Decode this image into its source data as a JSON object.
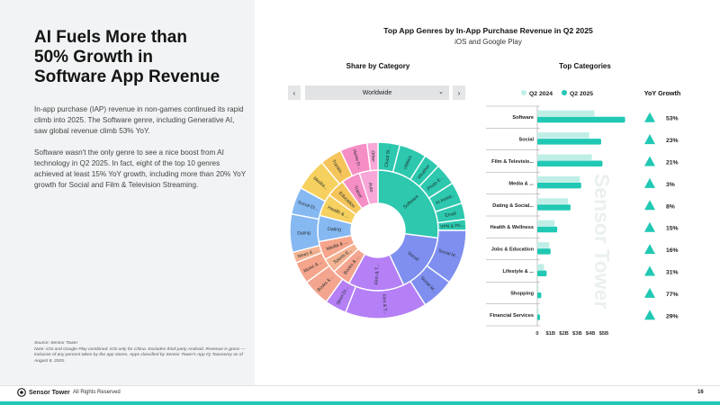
{
  "headline": [
    "AI Fuels More than",
    "50% Growth in",
    "Software App Revenue"
  ],
  "body_paragraphs": [
    "In-app purchase (IAP) revenue in non-games continued its rapid climb into 2025. The Software genre, including Generative AI, saw global revenue climb 53% YoY.",
    "Software wasn't the only genre to see a nice boost from AI technology in Q2 2025. In fact, eight of the top 10 genres achieved at least 15% YoY growth, including more than 20% YoY growth for Social and Film & Television Streaming."
  ],
  "source": {
    "label": "Source: Sensor Tower",
    "note": "Note: iOS and Google Play combined. iOS only for China. Excludes third-party Android. Revenue is gross — inclusive of any percent taken by the app stores. Apps classified by Sensor Tower's App IQ Taxonomy as of August 8, 2025."
  },
  "footer": {
    "brand": "Sensor Tower",
    "rights": "All Rights Reserved",
    "page": "16"
  },
  "chart": {
    "title": "Top App Genres by In-App Purchase Revenue in Q2 2025",
    "subtitle": "iOS and Google Play",
    "share_title": "Share by Category",
    "top_title": "Top Categories",
    "yoy_title": "YoY Growth",
    "dropdown_value": "Worldwide",
    "nav_prev": "‹",
    "nav_next": "›",
    "dropdown_chevron": "⌄",
    "legend": [
      "Q2 2024",
      "Q2 2025"
    ],
    "watermark": "Sensor Tower"
  },
  "colors": {
    "teal": "#21c8b3",
    "teal_light": "#bfeee7",
    "growth": "#21c8b3",
    "sunburst": {
      "software": "#2dc8ae",
      "social": "#7f8ff0",
      "film": "#b57ff5",
      "books": "#f4a58f",
      "music": "#f5a58c",
      "sports": "#f4b493",
      "dating": "#86b8f2",
      "health": "#f6d15f",
      "education": "#f5c55b",
      "travel": "#f58ec5",
      "misc": "#f7a7d8"
    }
  },
  "chart_data": [
    {
      "type": "bar",
      "orientation": "horizontal",
      "categories": [
        "Software",
        "Social",
        "Film & Television Streaming",
        "Media & Entertainment",
        "Dating & Social Discovery",
        "Health & Wellness",
        "Jobs & Education",
        "Lifestyle & Entertainment",
        "Shopping",
        "Financial Services"
      ],
      "category_labels": [
        "Software",
        "Social",
        "Film & Televisio...",
        "Media & ...",
        "Dating & Social...",
        "Health & Wellness",
        "Jobs & Education",
        "Lifestyle & ...",
        "Shopping",
        "Financial Services"
      ],
      "series": [
        {
          "name": "Q2 2024",
          "values": [
            4.3,
            3.9,
            4.1,
            3.2,
            2.3,
            1.3,
            0.9,
            0.5,
            0.1,
            0.1
          ]
        },
        {
          "name": "Q2 2025",
          "values": [
            6.6,
            4.8,
            4.9,
            3.3,
            2.5,
            1.5,
            1.0,
            0.7,
            0.3,
            0.2
          ]
        }
      ],
      "yoy_growth": [
        "53%",
        "23%",
        "21%",
        "3%",
        "8%",
        "15%",
        "16%",
        "31%",
        "77%",
        "29%"
      ],
      "xticks": [
        "0",
        "$1B",
        "$2B",
        "$3B",
        "$4B",
        "$5B"
      ],
      "xlim": [
        0,
        6.9
      ]
    },
    {
      "type": "sunburst",
      "inner": [
        {
          "label": "Software",
          "value": 27
        },
        {
          "label": "Social",
          "value": 16
        },
        {
          "label": "Film & T...",
          "value": 15
        },
        {
          "label": "Books & ...",
          "value": 5
        },
        {
          "label": "Sports E...",
          "value": 4
        },
        {
          "label": "Media & ...",
          "value": 5
        },
        {
          "label": "Dating",
          "value": 7
        },
        {
          "label": "Health & ...",
          "value": 6
        },
        {
          "label": "Education",
          "value": 5
        },
        {
          "label": "Travel",
          "value": 5
        },
        {
          "label": "Auto",
          "value": 5
        }
      ],
      "outer": [
        {
          "label": "Cloud St...",
          "value": 4
        },
        {
          "label": "Utilities",
          "value": 5
        },
        {
          "label": "Weather",
          "value": 3
        },
        {
          "label": "Photo E...",
          "value": 4
        },
        {
          "label": "AI Assist...",
          "value": 4
        },
        {
          "label": "Email",
          "value": 3
        },
        {
          "label": "VPN & Pri...",
          "value": 2
        },
        {
          "label": "Social M...",
          "value": 10
        },
        {
          "label": "Social M...",
          "value": 6
        },
        {
          "label": "Film & T...",
          "value": 15
        },
        {
          "label": "Short Dr...",
          "value": 4
        },
        {
          "label": "Books & ...",
          "value": 5
        },
        {
          "label": "Music & ...",
          "value": 4
        },
        {
          "label": "News & ...",
          "value": 2
        },
        {
          "label": "Dating",
          "value": 7
        },
        {
          "label": "Social Di...",
          "value": 5
        },
        {
          "label": "Medita...",
          "value": 6
        },
        {
          "label": "Trackin...",
          "value": 4
        },
        {
          "label": "Home D...",
          "value": 5
        },
        {
          "label": "Other",
          "value": 2
        }
      ]
    }
  ]
}
